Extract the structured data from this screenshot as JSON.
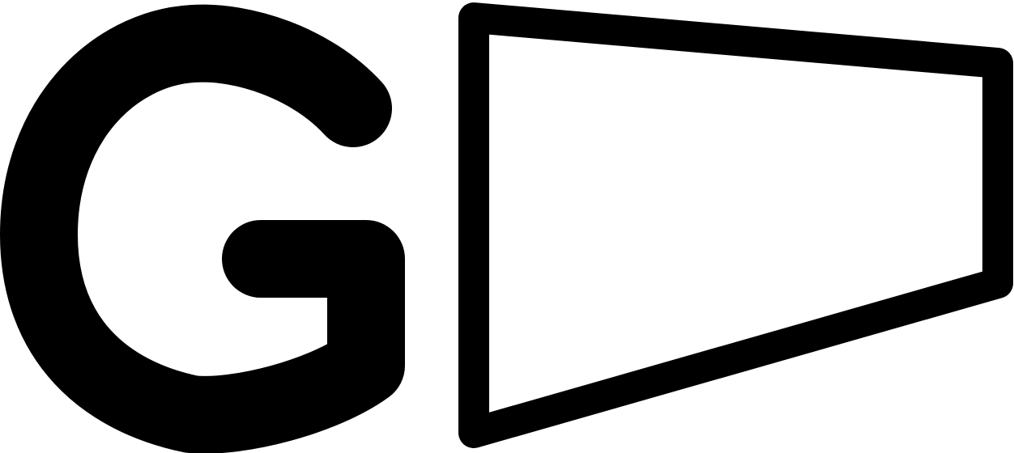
{
  "logo": {
    "letter": "G",
    "foreground_color": "#000000",
    "background_color": "#ffffff"
  },
  "icons": {
    "letter_mark": "letter-g-icon",
    "shape_mark": "trapezoid-outline-icon"
  }
}
